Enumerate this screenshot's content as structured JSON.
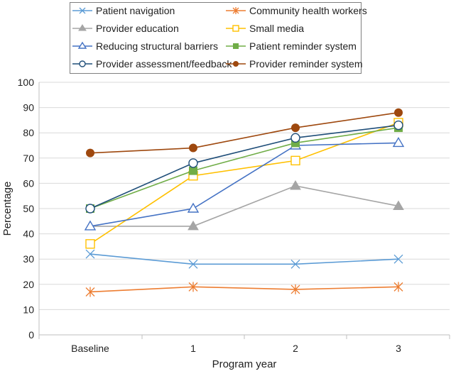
{
  "chart_data": {
    "type": "line",
    "title": "",
    "xlabel": "Program year",
    "ylabel": "Percentage",
    "categories": [
      "Baseline",
      "1",
      "2",
      "3"
    ],
    "ylim": [
      0,
      100
    ],
    "yticks": [
      0,
      10,
      20,
      30,
      40,
      50,
      60,
      70,
      80,
      90,
      100
    ],
    "grid": true,
    "legend_position": "top",
    "series": [
      {
        "name": "Patient navigation",
        "values": [
          32,
          28,
          28,
          30
        ],
        "color": "#5b9bd5",
        "marker": "x"
      },
      {
        "name": "Community health workers",
        "values": [
          17,
          19,
          18,
          19
        ],
        "color": "#ed7d31",
        "marker": "star"
      },
      {
        "name": "Provider education",
        "values": [
          43,
          43,
          59,
          51
        ],
        "color": "#a5a5a5",
        "marker": "triangle-filled"
      },
      {
        "name": "Small media",
        "values": [
          36,
          63,
          69,
          84
        ],
        "color": "#ffc000",
        "marker": "square-open"
      },
      {
        "name": "Reducing structural barriers",
        "values": [
          43,
          50,
          75,
          76
        ],
        "color": "#4472c4",
        "marker": "triangle-open"
      },
      {
        "name": "Patient reminder system",
        "values": [
          50,
          65,
          76,
          82
        ],
        "color": "#70ad47",
        "marker": "square-filled"
      },
      {
        "name": "Provider assessment/feedback",
        "values": [
          50,
          68,
          78,
          83
        ],
        "color": "#1f4e79",
        "marker": "circle-open"
      },
      {
        "name": "Provider reminder system",
        "values": [
          72,
          74,
          82,
          88
        ],
        "color": "#9e480e",
        "marker": "circle-filled"
      }
    ]
  }
}
